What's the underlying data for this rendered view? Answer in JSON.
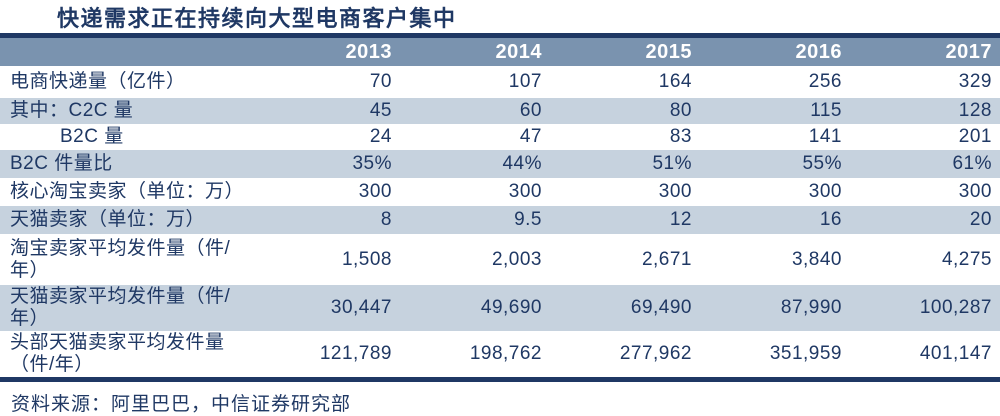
{
  "title": "快递需求正在持续向大型电商客户集中",
  "source": "资料来源：阿里巴巴，中信证券研究部",
  "colors": {
    "navy_text": "#1F3864",
    "header_bg": "#7A93AF",
    "alt_row_bg": "#C6D2DE",
    "header_text": "#FFFFFF"
  },
  "chart_data": {
    "type": "table",
    "title": "快递需求正在持续向大型电商客户集中",
    "columns": [
      "",
      "2013",
      "2014",
      "2015",
      "2016",
      "2017"
    ],
    "rows": [
      {
        "label": "电商快递量（亿件）",
        "values": [
          "70",
          "107",
          "164",
          "256",
          "329"
        ]
      },
      {
        "label": "其中：C2C 量",
        "values": [
          "45",
          "60",
          "80",
          "115",
          "128"
        ]
      },
      {
        "label": "B2C 量",
        "values": [
          "24",
          "47",
          "83",
          "141",
          "201"
        ]
      },
      {
        "label": "B2C 件量比",
        "values": [
          "35%",
          "44%",
          "51%",
          "55%",
          "61%"
        ]
      },
      {
        "label": "核心淘宝卖家（单位：万）",
        "values": [
          "300",
          "300",
          "300",
          "300",
          "300"
        ]
      },
      {
        "label": "天猫卖家（单位：万）",
        "values": [
          "8",
          "9.5",
          "12",
          "16",
          "20"
        ]
      },
      {
        "label": "淘宝卖家平均发件量（件/\n年）",
        "values": [
          "1,508",
          "2,003",
          "2,671",
          "3,840",
          "4,275"
        ]
      },
      {
        "label": "天猫卖家平均发件量（件/\n年）",
        "values": [
          "30,447",
          "49,690",
          "69,490",
          "87,990",
          "100,287"
        ]
      },
      {
        "label": "头部天猫卖家平均发件量\n（件/年）",
        "values": [
          "121,789",
          "198,762",
          "277,962",
          "351,959",
          "401,147"
        ]
      }
    ]
  }
}
